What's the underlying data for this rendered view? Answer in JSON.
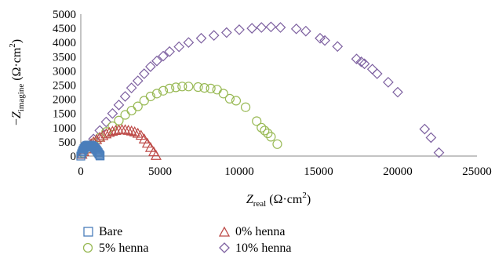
{
  "chart_data": {
    "type": "scatter",
    "xlabel": {
      "symbol": "Z",
      "sub": "real",
      "unit": "(Ω·cm",
      "sup": "2",
      "close": ")"
    },
    "ylabel": {
      "prefix": "−",
      "symbol": "Z",
      "sub": "imagine",
      "unit": "(Ω·cm",
      "sup": "2",
      "close": ")"
    },
    "xlim": [
      0,
      25000
    ],
    "ylim": [
      0,
      5000
    ],
    "xticks": [
      0,
      5000,
      10000,
      15000,
      20000,
      25000
    ],
    "yticks": [
      0,
      500,
      1000,
      1500,
      2000,
      2500,
      3000,
      3500,
      4000,
      4500,
      5000
    ],
    "grid": false,
    "legend": "bottom",
    "series": [
      {
        "name": "Bare",
        "marker": "square",
        "color": "#4a7ebb",
        "points": [
          [
            0,
            0
          ],
          [
            50,
            80
          ],
          [
            100,
            150
          ],
          [
            150,
            210
          ],
          [
            200,
            260
          ],
          [
            250,
            300
          ],
          [
            300,
            330
          ],
          [
            350,
            355
          ],
          [
            400,
            370
          ],
          [
            450,
            380
          ],
          [
            500,
            385
          ],
          [
            550,
            385
          ],
          [
            600,
            380
          ],
          [
            650,
            372
          ],
          [
            700,
            360
          ],
          [
            750,
            345
          ],
          [
            800,
            325
          ],
          [
            850,
            300
          ],
          [
            900,
            270
          ],
          [
            950,
            240
          ],
          [
            1000,
            200
          ],
          [
            1050,
            160
          ],
          [
            1100,
            115
          ],
          [
            1150,
            70
          ],
          [
            1200,
            30
          ],
          [
            1220,
            5
          ]
        ]
      },
      {
        "name": "0% henna",
        "marker": "triangle",
        "color": "#be4b48",
        "points": [
          [
            80,
            60
          ],
          [
            200,
            150
          ],
          [
            350,
            250
          ],
          [
            500,
            350
          ],
          [
            650,
            430
          ],
          [
            800,
            500
          ],
          [
            1000,
            580
          ],
          [
            1200,
            660
          ],
          [
            1400,
            720
          ],
          [
            1600,
            780
          ],
          [
            1800,
            830
          ],
          [
            2000,
            870
          ],
          [
            2200,
            900
          ],
          [
            2400,
            920
          ],
          [
            2600,
            930
          ],
          [
            2800,
            925
          ],
          [
            3000,
            905
          ],
          [
            3200,
            880
          ],
          [
            3400,
            850
          ],
          [
            3600,
            800
          ],
          [
            3800,
            730
          ],
          [
            4000,
            600
          ],
          [
            4200,
            450
          ],
          [
            4400,
            300
          ],
          [
            4600,
            150
          ],
          [
            4750,
            20
          ]
        ]
      },
      {
        "name": "5% henna",
        "marker": "circle",
        "color": "#98b954",
        "points": [
          [
            150,
            100
          ],
          [
            400,
            250
          ],
          [
            800,
            450
          ],
          [
            1200,
            650
          ],
          [
            1600,
            850
          ],
          [
            2000,
            1050
          ],
          [
            2400,
            1250
          ],
          [
            2800,
            1450
          ],
          [
            3200,
            1600
          ],
          [
            3600,
            1750
          ],
          [
            4000,
            1950
          ],
          [
            4400,
            2100
          ],
          [
            4800,
            2200
          ],
          [
            5200,
            2300
          ],
          [
            5600,
            2380
          ],
          [
            6000,
            2420
          ],
          [
            6400,
            2450
          ],
          [
            6800,
            2450
          ],
          [
            7400,
            2430
          ],
          [
            7800,
            2400
          ],
          [
            8200,
            2380
          ],
          [
            8600,
            2340
          ],
          [
            9000,
            2200
          ],
          [
            9400,
            2020
          ],
          [
            9800,
            1950
          ],
          [
            10400,
            1720
          ],
          [
            11100,
            1230
          ],
          [
            11400,
            1000
          ],
          [
            11600,
            900
          ],
          [
            11800,
            800
          ],
          [
            12000,
            680
          ],
          [
            12400,
            420
          ]
        ]
      },
      {
        "name": "10% henna",
        "marker": "diamond",
        "color": "#7d60a0",
        "points": [
          [
            400,
            300
          ],
          [
            800,
            600
          ],
          [
            1200,
            900
          ],
          [
            1600,
            1200
          ],
          [
            2000,
            1500
          ],
          [
            2400,
            1800
          ],
          [
            2800,
            2100
          ],
          [
            3200,
            2400
          ],
          [
            3600,
            2650
          ],
          [
            4000,
            2900
          ],
          [
            4400,
            3150
          ],
          [
            4800,
            3350
          ],
          [
            5200,
            3520
          ],
          [
            5600,
            3680
          ],
          [
            6200,
            3850
          ],
          [
            6800,
            4000
          ],
          [
            7600,
            4150
          ],
          [
            8400,
            4250
          ],
          [
            9200,
            4350
          ],
          [
            10000,
            4450
          ],
          [
            10800,
            4500
          ],
          [
            11400,
            4530
          ],
          [
            12000,
            4550
          ],
          [
            12600,
            4530
          ],
          [
            13600,
            4480
          ],
          [
            14200,
            4400
          ],
          [
            15100,
            4150
          ],
          [
            15400,
            4070
          ],
          [
            16200,
            3860
          ],
          [
            17400,
            3420
          ],
          [
            17700,
            3320
          ],
          [
            17900,
            3250
          ],
          [
            18400,
            3060
          ],
          [
            18700,
            2900
          ],
          [
            19400,
            2600
          ],
          [
            20000,
            2250
          ],
          [
            21700,
            950
          ],
          [
            22100,
            650
          ],
          [
            22600,
            120
          ]
        ]
      }
    ]
  }
}
